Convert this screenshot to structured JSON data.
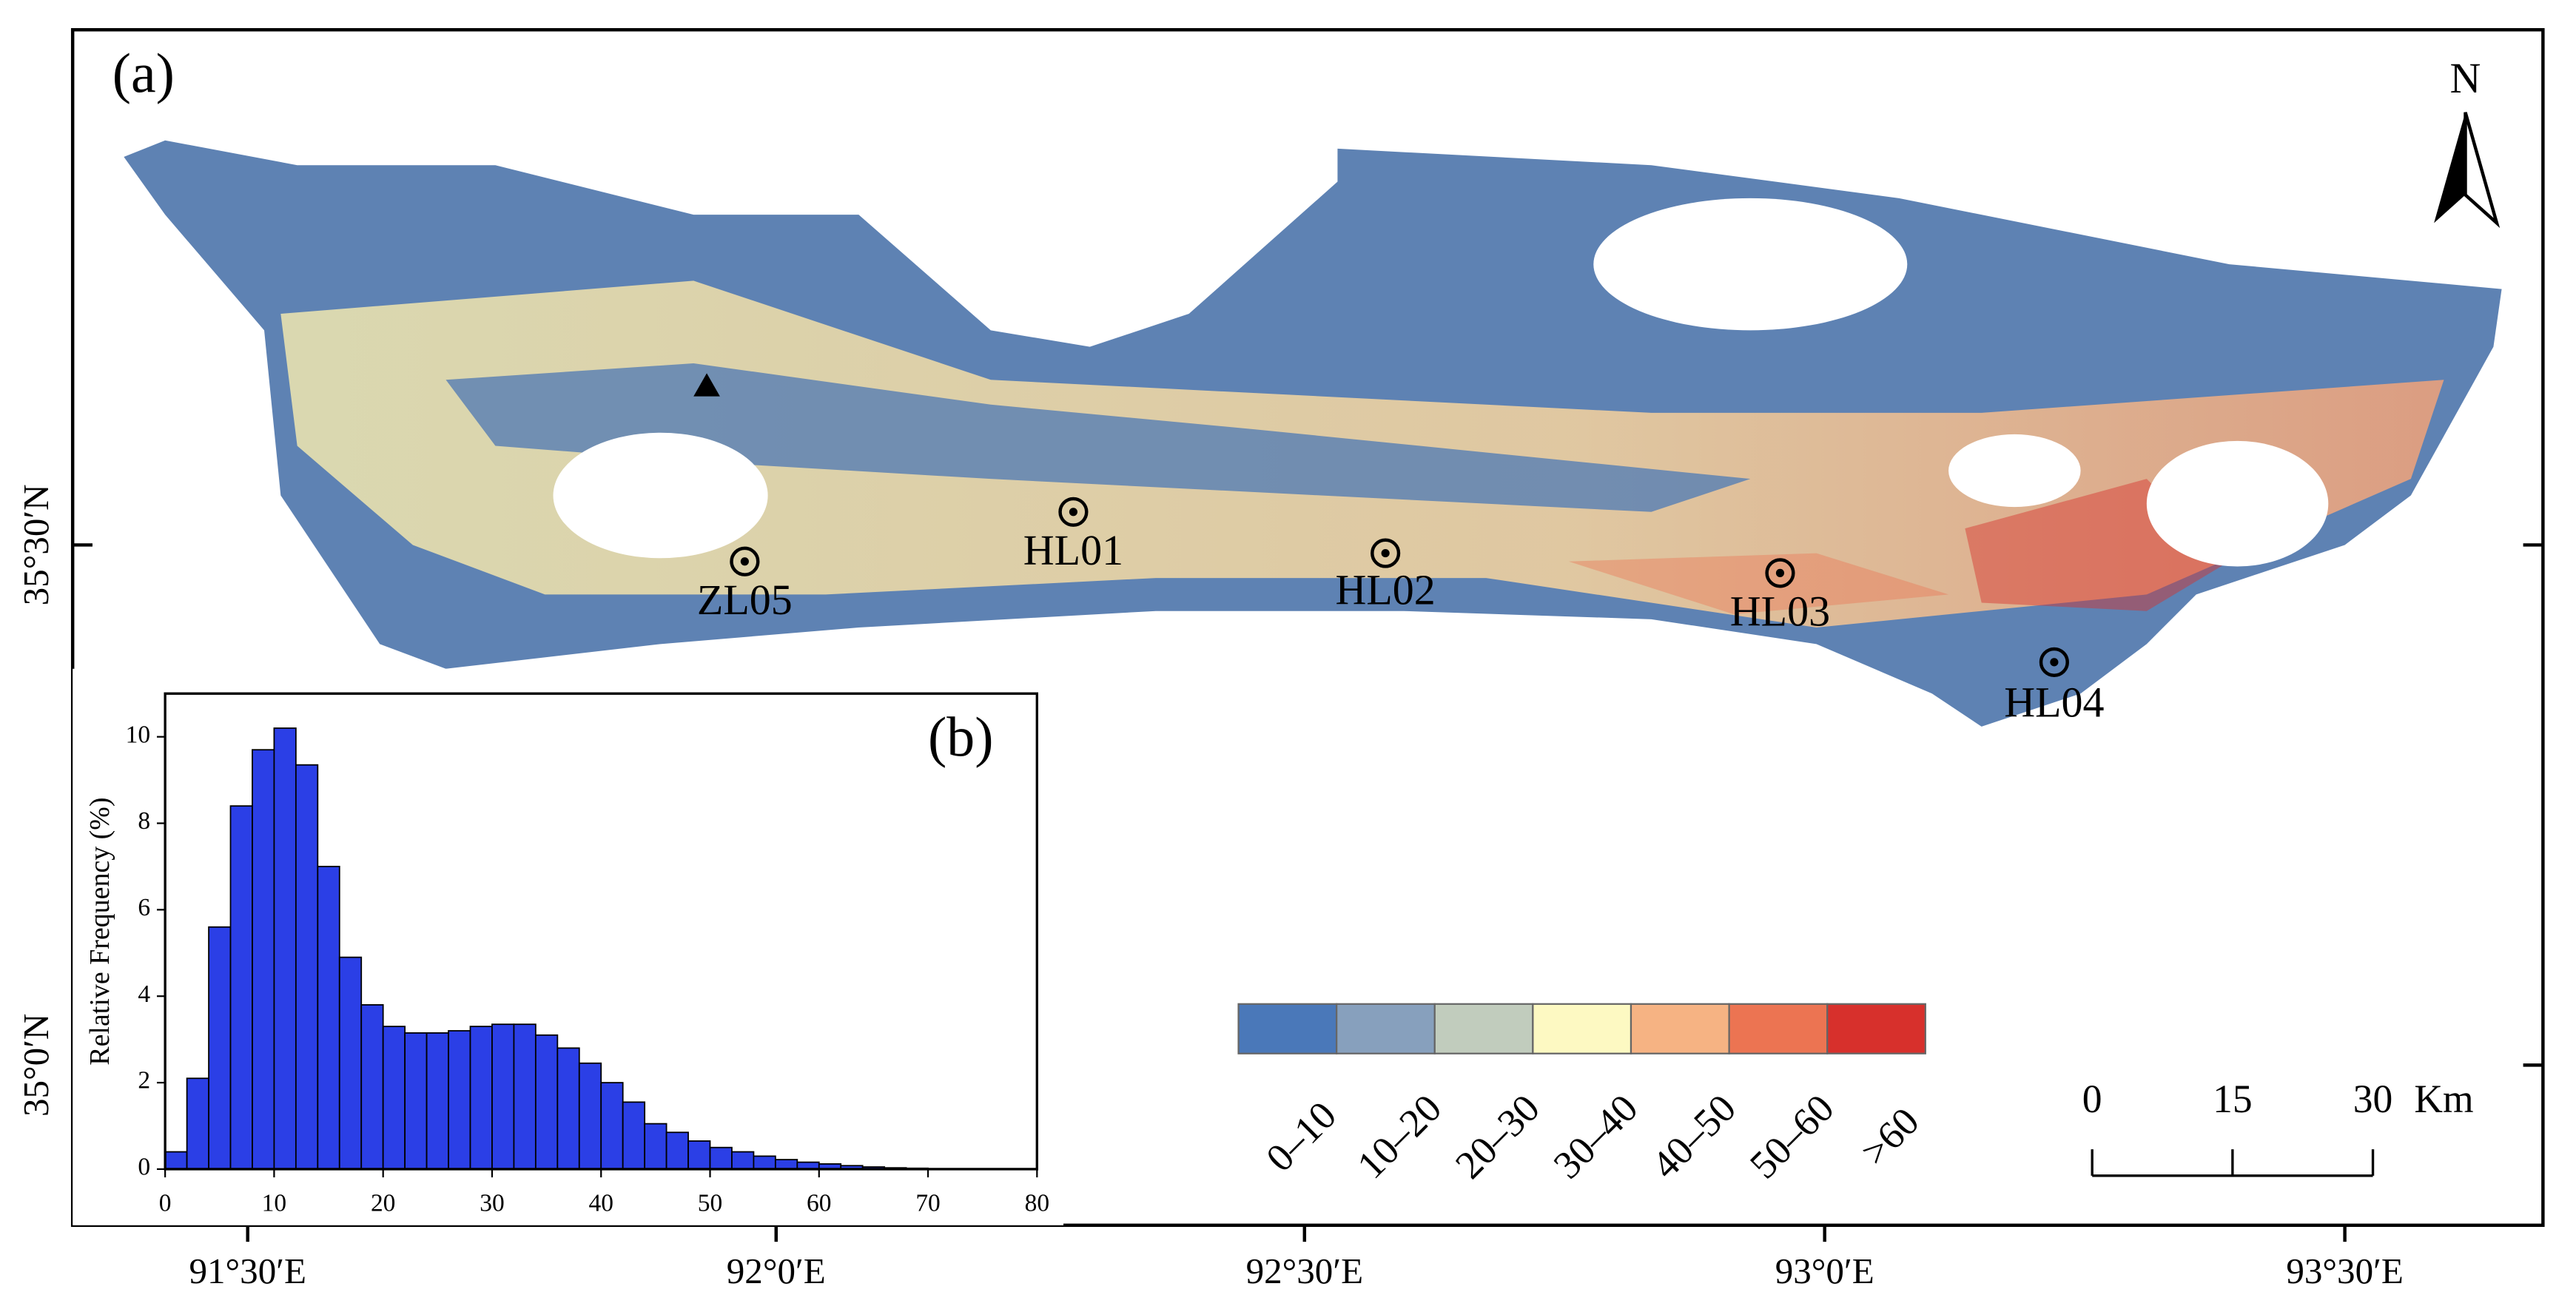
{
  "map": {
    "panel_label": "(a)",
    "north": "N",
    "sites": [
      {
        "label": "ZL05"
      },
      {
        "label": "HL01"
      },
      {
        "label": "HL02"
      },
      {
        "label": "HL03"
      },
      {
        "label": "HL04"
      }
    ],
    "lon_ticks": [
      "91°30′E",
      "92°0′E",
      "92°30′E",
      "93°0′E",
      "93°30′E"
    ],
    "lat_ticks": [
      "35°30′N",
      "35°0′N"
    ],
    "legend": [
      {
        "label": "0–10",
        "color": "#4a78b9"
      },
      {
        "label": "10–20",
        "color": "#87a0bd"
      },
      {
        "label": "20–30",
        "color": "#c1ccbd"
      },
      {
        "label": "30–40",
        "color": "#fdf9c2"
      },
      {
        "label": "40–50",
        "color": "#f6b383"
      },
      {
        "label": "50–60",
        "color": "#ec7452"
      },
      {
        "label": ">60",
        "color": "#d7302c"
      }
    ],
    "scale_bar": {
      "ticks": [
        0,
        15,
        30
      ],
      "unit": "Km"
    }
  },
  "chart_data": {
    "type": "histogram",
    "panel_label": "(b)",
    "ylabel": "Relative Frequency (%)",
    "bins": [
      0,
      2,
      4,
      6,
      8,
      10,
      12,
      14,
      16,
      18,
      20,
      22,
      24,
      26,
      28,
      30,
      32,
      34,
      36,
      38,
      40,
      42,
      44,
      46,
      48,
      50,
      52,
      54,
      56,
      58,
      60,
      62,
      64,
      66,
      68,
      70
    ],
    "values": [
      0.4,
      2.1,
      5.6,
      8.4,
      9.7,
      10.2,
      9.35,
      7.0,
      4.9,
      3.8,
      3.3,
      3.15,
      3.15,
      3.2,
      3.3,
      3.35,
      3.35,
      3.1,
      2.8,
      2.45,
      2.0,
      1.55,
      1.05,
      0.85,
      0.65,
      0.5,
      0.4,
      0.3,
      0.22,
      0.16,
      0.12,
      0.08,
      0.05,
      0.03,
      0.02
    ],
    "color": "#2b3fe6",
    "xlim": [
      0,
      80
    ],
    "ylim": [
      0,
      11
    ],
    "xticks": [
      0,
      10,
      20,
      30,
      40,
      50,
      60,
      70,
      80
    ],
    "yticks": [
      0,
      2,
      4,
      6,
      8,
      10
    ]
  }
}
